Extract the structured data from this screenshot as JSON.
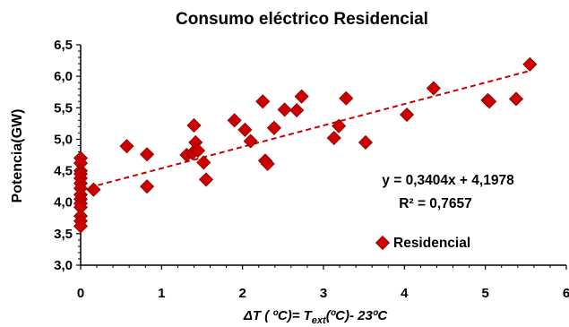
{
  "chart_data": {
    "type": "scatter",
    "title": "Consumo eléctrico Residencial",
    "ylabel": "Potencia(GW)",
    "xlabel": {
      "prefix": "ΔT ( ºC)= T",
      "subscript": "ext",
      "suffix": "(ºC)- 23ºC"
    },
    "xlim": [
      0,
      6
    ],
    "ylim": [
      3.0,
      6.5
    ],
    "x_ticks": [
      0,
      1,
      2,
      3,
      4,
      5,
      6
    ],
    "y_ticks": [
      3.0,
      3.5,
      4.0,
      4.5,
      5.0,
      5.5,
      6.0,
      6.5
    ],
    "y_tick_labels": [
      "3,0",
      "3,5",
      "4,0",
      "4,5",
      "5,0",
      "5,5",
      "6,0",
      "6,5"
    ],
    "grid": false,
    "legend_position": "bottom-right",
    "series": [
      {
        "name": "Residencial",
        "color": "#cc0000",
        "marker": "diamond",
        "points": [
          {
            "x": 0,
            "y": 4.7
          },
          {
            "x": 0,
            "y": 4.62
          },
          {
            "x": 0,
            "y": 4.5
          },
          {
            "x": 0,
            "y": 4.45
          },
          {
            "x": 0,
            "y": 4.38
          },
          {
            "x": 0,
            "y": 4.3
          },
          {
            "x": 0,
            "y": 4.22
          },
          {
            "x": 0,
            "y": 4.12
          },
          {
            "x": 0,
            "y": 4.05
          },
          {
            "x": 0,
            "y": 3.98
          },
          {
            "x": 0,
            "y": 3.92
          },
          {
            "x": 0,
            "y": 3.78
          },
          {
            "x": 0,
            "y": 3.7
          },
          {
            "x": 0,
            "y": 3.62
          },
          {
            "x": 0.16,
            "y": 4.2
          },
          {
            "x": 0.57,
            "y": 4.89
          },
          {
            "x": 0.82,
            "y": 4.76
          },
          {
            "x": 0.82,
            "y": 4.25
          },
          {
            "x": 1.31,
            "y": 4.75
          },
          {
            "x": 1.38,
            "y": 4.78
          },
          {
            "x": 1.4,
            "y": 5.22
          },
          {
            "x": 1.42,
            "y": 4.95
          },
          {
            "x": 1.45,
            "y": 4.82
          },
          {
            "x": 1.52,
            "y": 4.63
          },
          {
            "x": 1.55,
            "y": 4.36
          },
          {
            "x": 1.9,
            "y": 5.3
          },
          {
            "x": 2.03,
            "y": 5.15
          },
          {
            "x": 2.1,
            "y": 4.97
          },
          {
            "x": 2.25,
            "y": 5.6
          },
          {
            "x": 2.28,
            "y": 4.66
          },
          {
            "x": 2.31,
            "y": 4.61
          },
          {
            "x": 2.39,
            "y": 5.18
          },
          {
            "x": 2.52,
            "y": 5.47
          },
          {
            "x": 2.67,
            "y": 5.46
          },
          {
            "x": 2.73,
            "y": 5.68
          },
          {
            "x": 3.13,
            "y": 5.02
          },
          {
            "x": 3.19,
            "y": 5.21
          },
          {
            "x": 3.28,
            "y": 5.65
          },
          {
            "x": 3.52,
            "y": 4.95
          },
          {
            "x": 4.03,
            "y": 5.39
          },
          {
            "x": 4.36,
            "y": 5.81
          },
          {
            "x": 5.03,
            "y": 5.62
          },
          {
            "x": 5.05,
            "y": 5.6
          },
          {
            "x": 5.38,
            "y": 5.64
          },
          {
            "x": 5.55,
            "y": 6.19
          }
        ]
      }
    ],
    "trendline": {
      "slope": 0.3404,
      "intercept": 4.1978,
      "x_range": [
        0,
        5.55
      ],
      "style": "dashed",
      "color": "#cc0000"
    },
    "annotations": {
      "equation": "y = 0,3404x + 4,1978",
      "r2_prefix": "R² = 0,7657"
    }
  }
}
